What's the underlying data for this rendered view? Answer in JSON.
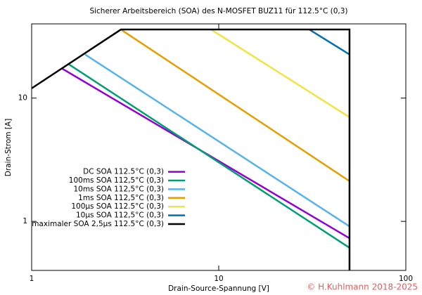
{
  "chart_data": {
    "type": "line",
    "title": "Sicherer Arbeitsbereich (SOA) des N-MOSFET BUZ11 für 112.5°C (0,3)",
    "x_label": "Drain-Source-Spannung [V]",
    "y_label": "Drain-Strom [A]",
    "watermark": "© H.Kuhlmann 2018-2025",
    "log_x": true,
    "log_y": true,
    "xlim": [
      1,
      100
    ],
    "ylim": [
      0.4,
      40
    ],
    "xticks": [
      1,
      10,
      100
    ],
    "yticks": [
      1,
      10
    ],
    "legend": "lower left",
    "series": [
      {
        "name": "DC SOA 112.5°C (0,3)",
        "color": "#9400d3",
        "x": [
          1.45,
          50
        ],
        "values": [
          17.4,
          0.73
        ]
      },
      {
        "name": "100ms SOA 112,5°C (0,3)",
        "color": "#009e73",
        "x": [
          1.58,
          50
        ],
        "values": [
          18.8,
          0.61
        ]
      },
      {
        "name": "10ms SOA 112,5°C (0,3)",
        "color": "#56b4e9",
        "x": [
          1.93,
          50
        ],
        "values": [
          22.6,
          0.91
        ]
      },
      {
        "name": "1ms SOA 112,5°C (0,3)",
        "color": "#e69f00",
        "x": [
          3,
          50
        ],
        "values": [
          36,
          2.12
        ]
      },
      {
        "name": "100µs SOA 112.5°C (0,3)",
        "color": "#f0e442",
        "x": [
          9.1,
          50
        ],
        "values": [
          36,
          7.0
        ]
      },
      {
        "name": "10µs SOA 112,5°C (0,3)",
        "color": "#0072b2",
        "x": [
          30.5,
          50
        ],
        "values": [
          36,
          22.6
        ]
      },
      {
        "name": "maximaler SOA 2,5µs 112.5°C (0,3)",
        "color": "#000000",
        "x": [
          1,
          3,
          50,
          50
        ],
        "values": [
          12,
          36,
          36,
          0.4
        ]
      }
    ]
  }
}
